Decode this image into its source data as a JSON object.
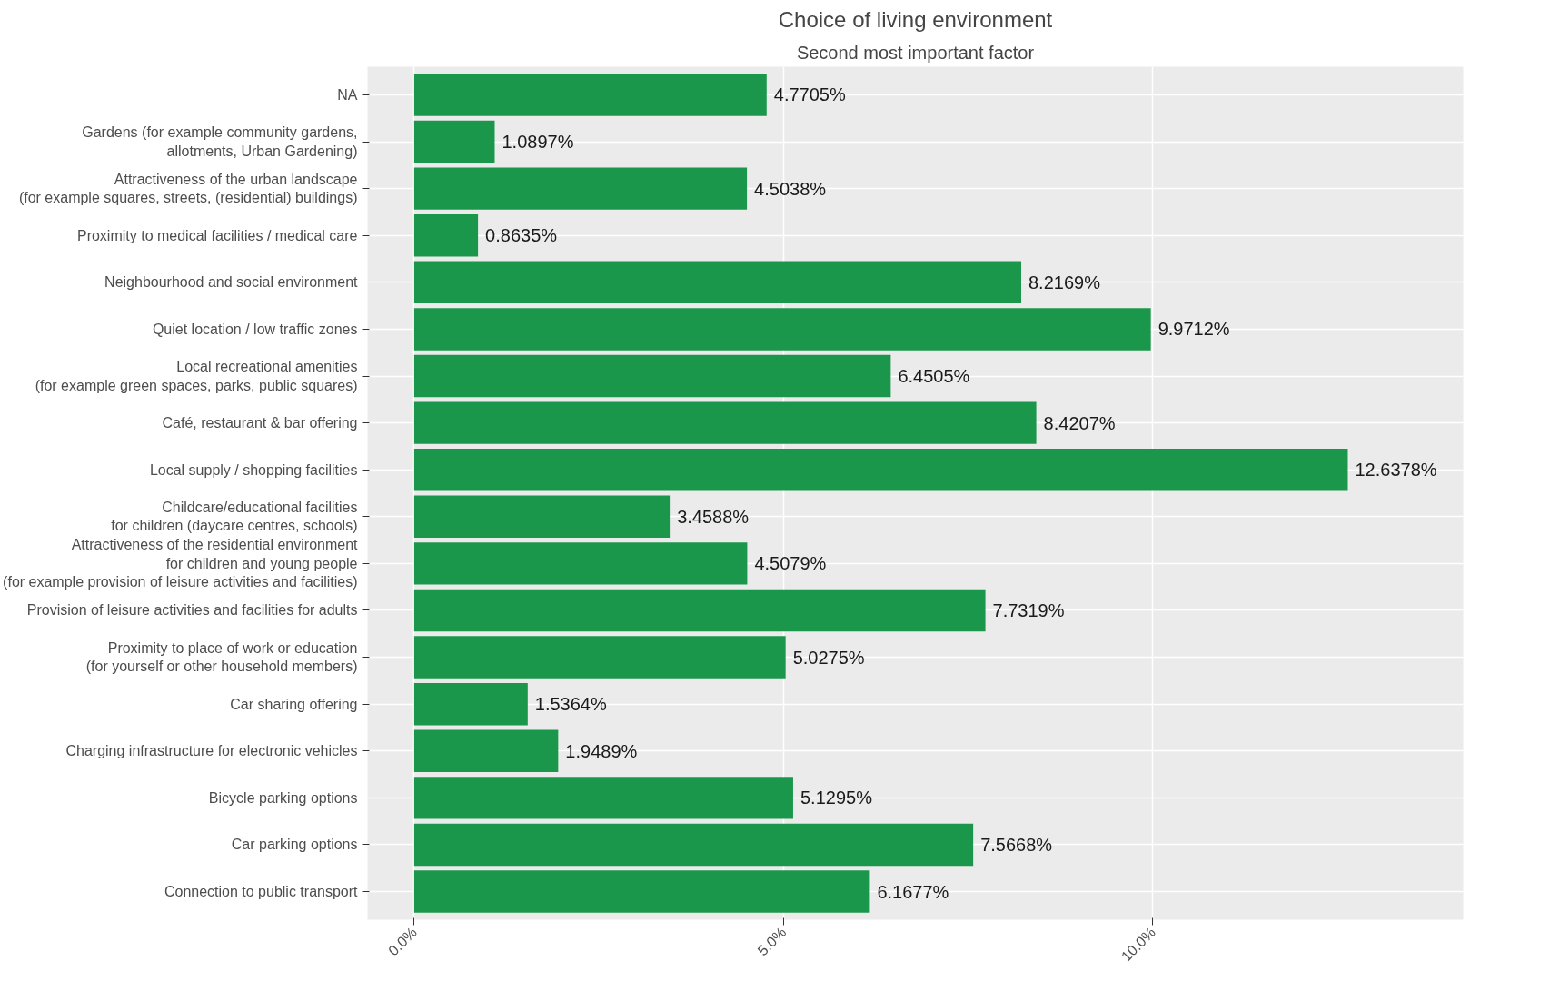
{
  "chart_data": {
    "type": "bar",
    "orientation": "horizontal",
    "title": "Choice of living environment",
    "subtitle": "Second most important factor",
    "categories": [
      "NA",
      "Gardens (for example community gardens,\nallotments, Urban Gardening)",
      "Attractiveness of the urban landscape\n(for example squares, streets, (residential) buildings)",
      "Proximity to medical facilities / medical care",
      "Neighbourhood and social environment",
      "Quiet location / low traffic zones",
      "Local recreational amenities\n(for example green spaces, parks, public squares)",
      "Café, restaurant & bar offering",
      "Local supply / shopping facilities",
      "Childcare/educational facilities\nfor children (daycare centres, schools)",
      "Attractiveness of the residential environment\nfor children and young people\n(for example provision of leisure activities and facilities)",
      "Provision of leisure activities and facilities for adults",
      "Proximity to place of work or education\n(for yourself or other household members)",
      "Car sharing offering",
      "Charging infrastructure for electronic vehicles",
      "Bicycle parking options",
      "Car parking options",
      "Connection to public transport"
    ],
    "values": [
      4.7705,
      1.0897,
      4.5038,
      0.8635,
      8.2169,
      9.9712,
      6.4505,
      8.4207,
      12.6378,
      3.4588,
      4.5079,
      7.7319,
      5.0275,
      1.5364,
      1.9489,
      5.1295,
      7.5668,
      6.1677
    ],
    "value_labels": [
      "4.7705%",
      "1.0897%",
      "4.5038%",
      "0.8635%",
      "8.2169%",
      "9.9712%",
      "6.4505%",
      "8.4207%",
      "12.6378%",
      "3.4588%",
      "4.5079%",
      "7.7319%",
      "5.0275%",
      "1.5364%",
      "1.9489%",
      "5.1295%",
      "7.5668%",
      "6.1677%"
    ],
    "color": "#1b974b",
    "grid": true,
    "xlim": [
      -0.632,
      14.2
    ],
    "xticks": [
      {
        "value": 0,
        "label": "0.0%"
      },
      {
        "value": 5,
        "label": "5.0%"
      },
      {
        "value": 10,
        "label": "10.0%"
      }
    ]
  }
}
